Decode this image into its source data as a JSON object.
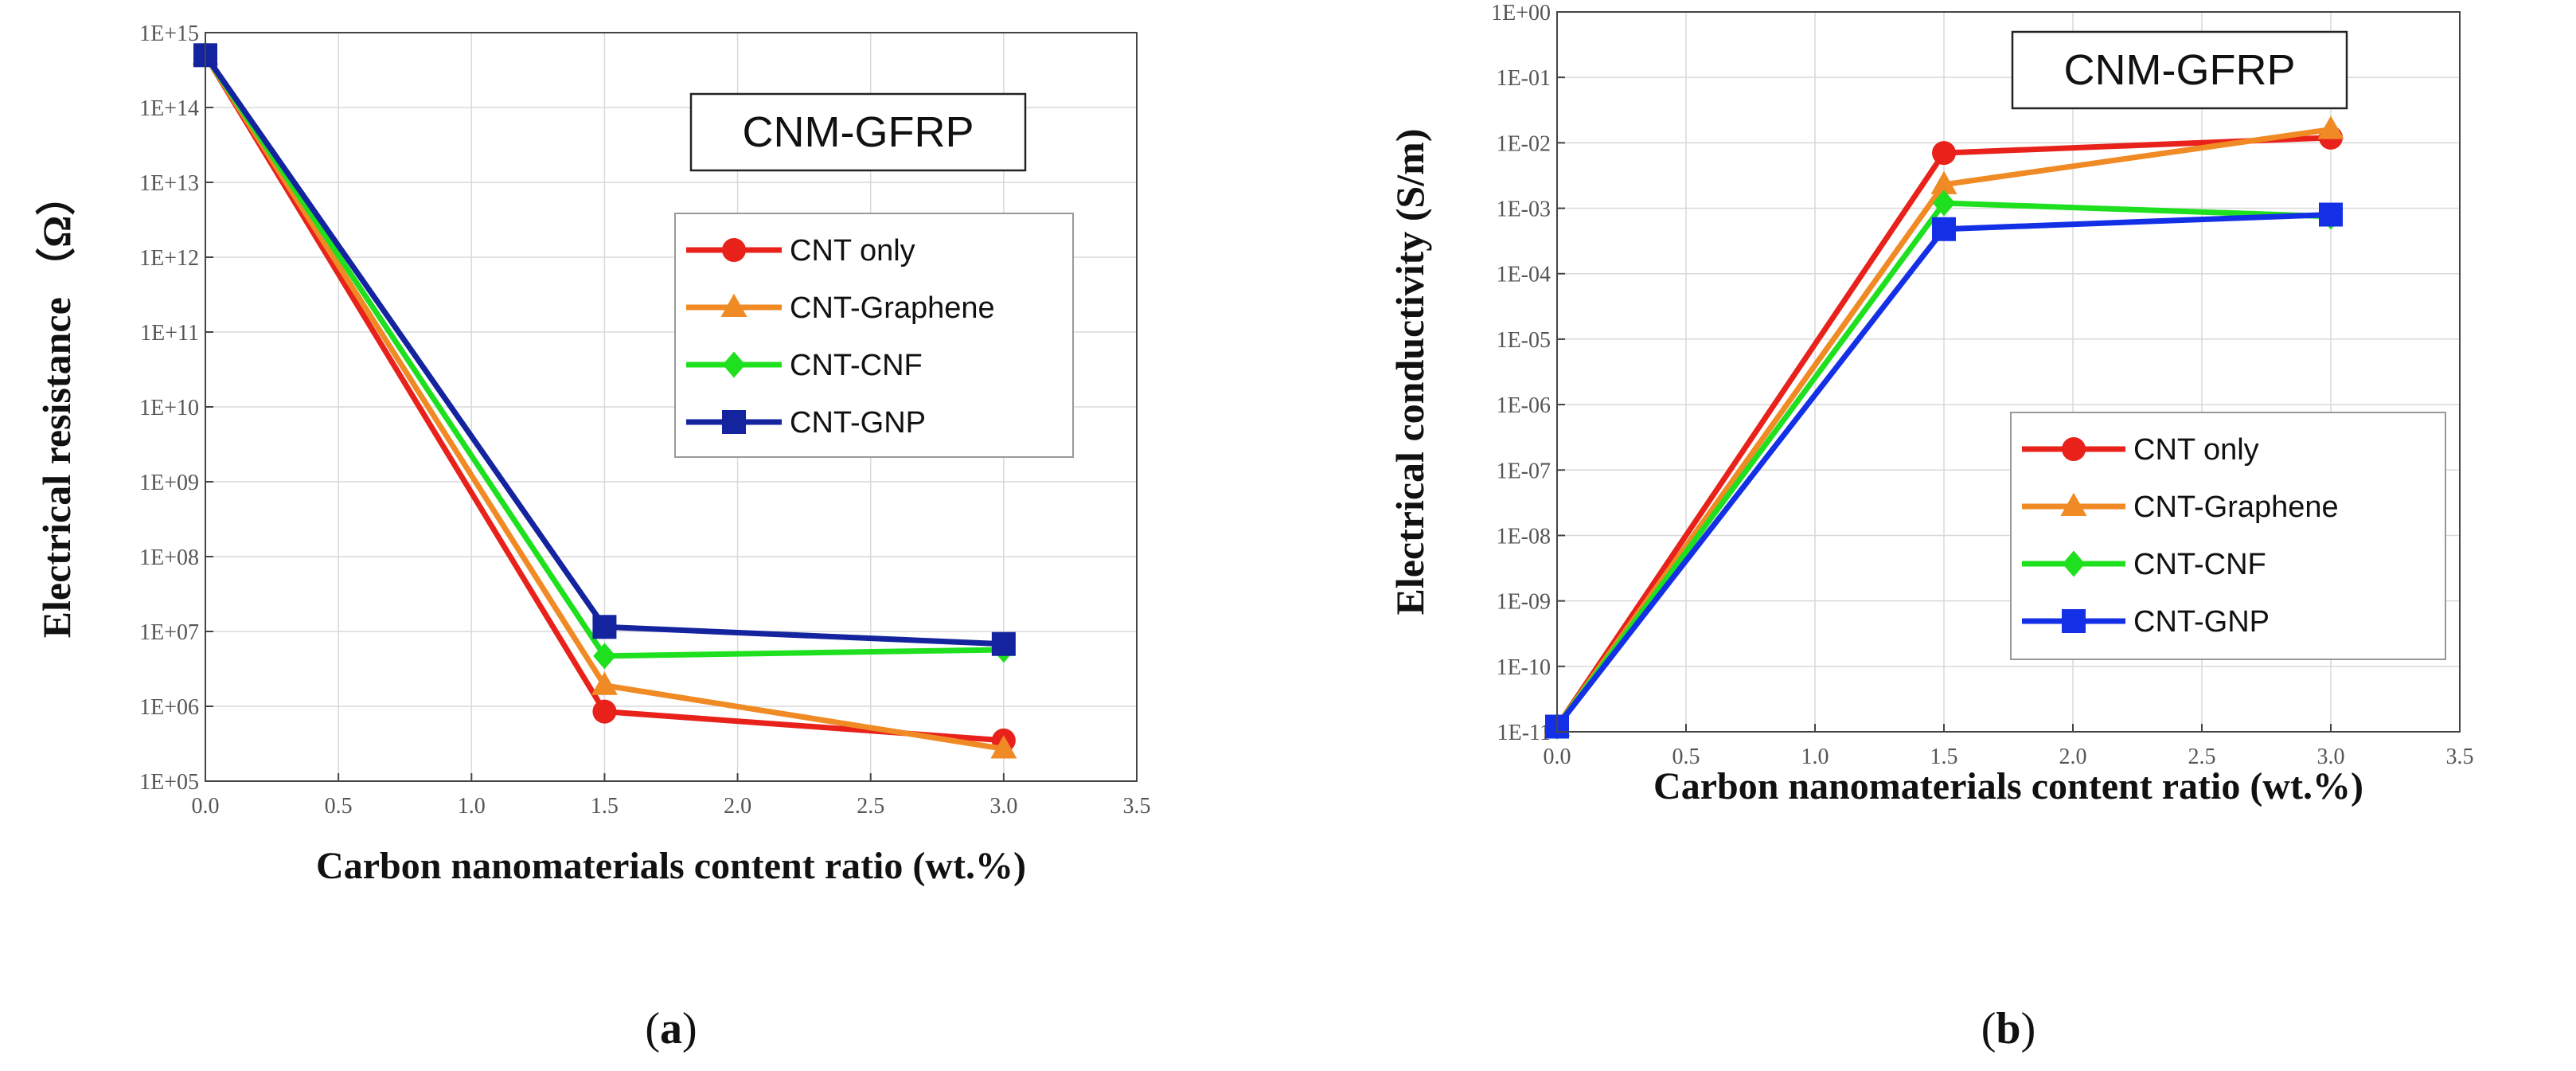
{
  "colors": {
    "CNT only": "#e8221b",
    "CNT-Graphene": "#f08a24",
    "CNT-CNF": "#1fe01f",
    "CNT-GNP_a": "#14239e",
    "CNT-GNP_b": "#1430e6"
  },
  "chart_data": [
    {
      "type": "line",
      "panel": "a",
      "title": "CNM-GFRP",
      "xlabel": "Carbon nanomaterials content ratio (wt.%)",
      "ylabel": "Electrical resistance （Ω）",
      "yscale": "log",
      "xlim": [
        0.0,
        3.5
      ],
      "ylim": [
        100000.0,
        1000000000000000.0
      ],
      "x_ticks": [
        "0.0",
        "0.5",
        "1.0",
        "1.5",
        "2.0",
        "2.5",
        "3.0",
        "3.5"
      ],
      "y_ticks": [
        "1E+05",
        "1E+06",
        "1E+07",
        "1E+08",
        "1E+09",
        "1E+10",
        "1E+11",
        "1E+12",
        "1E+13",
        "1E+14",
        "1E+15"
      ],
      "x": [
        0.0,
        1.5,
        3.0
      ],
      "series": [
        {
          "name": "CNT only",
          "marker": "circle",
          "values": [
            500000000000000.0,
            850000.0,
            350000.0
          ]
        },
        {
          "name": "CNT-Graphene",
          "marker": "triangle",
          "values": [
            500000000000000.0,
            1900000.0,
            270000.0
          ]
        },
        {
          "name": "CNT-CNF",
          "marker": "diamond",
          "values": [
            500000000000000.0,
            4700000.0,
            5700000.0
          ]
        },
        {
          "name": "CNT-GNP",
          "marker": "square",
          "values": [
            500000000000000.0,
            11500000.0,
            6800000.0
          ]
        }
      ],
      "caption": "a"
    },
    {
      "type": "line",
      "panel": "b",
      "title": "CNM-GFRP",
      "xlabel": "Carbon nanomaterials content ratio (wt.%)",
      "ylabel": "Electrical conductivity (S/m)",
      "yscale": "log",
      "xlim": [
        0.0,
        3.5
      ],
      "ylim": [
        1e-11,
        1.0
      ],
      "x_ticks": [
        "0.0",
        "0.5",
        "1.0",
        "1.5",
        "2.0",
        "2.5",
        "3.0",
        "3.5"
      ],
      "y_ticks": [
        "1E-11",
        "1E-10",
        "1E-09",
        "1E-08",
        "1E-07",
        "1E-06",
        "1E-05",
        "1E-04",
        "1E-03",
        "1E-02",
        "1E-01",
        "1E+00"
      ],
      "x": [
        0.0,
        1.5,
        3.0
      ],
      "series": [
        {
          "name": "CNT only",
          "marker": "circle",
          "values": [
            1.2e-11,
            0.007,
            0.012
          ]
        },
        {
          "name": "CNT-Graphene",
          "marker": "triangle",
          "values": [
            1.2e-11,
            0.0023,
            0.016
          ]
        },
        {
          "name": "CNT-CNF",
          "marker": "diamond",
          "values": [
            1.2e-11,
            0.0012,
            0.00075
          ]
        },
        {
          "name": "CNT-GNP",
          "marker": "square",
          "values": [
            1.2e-11,
            0.00048,
            0.0008
          ]
        }
      ],
      "caption": "b"
    }
  ]
}
